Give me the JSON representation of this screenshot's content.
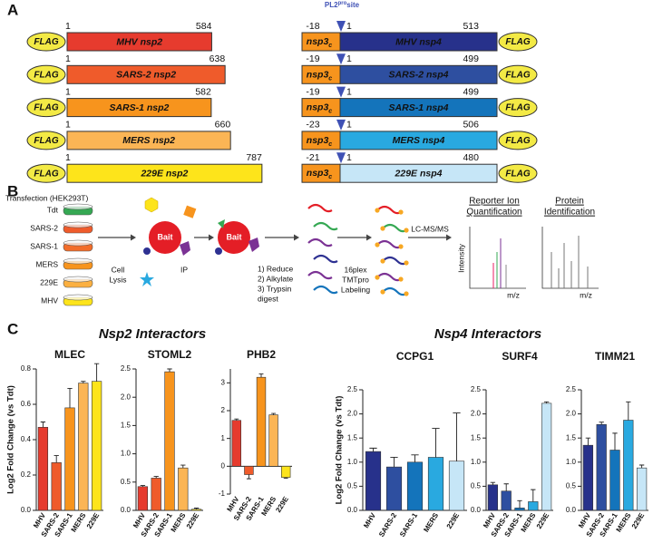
{
  "panel_a": {
    "label": "A",
    "flag": "FLAG",
    "nsp2": [
      {
        "name": "MHV nsp2",
        "start": 1,
        "end": 584,
        "color": "#e63b2e"
      },
      {
        "name": "SARS-2 nsp2",
        "start": 1,
        "end": 638,
        "color": "#ef5b2b"
      },
      {
        "name": "SARS-1 nsp2",
        "start": 1,
        "end": 582,
        "color": "#f7941d"
      },
      {
        "name": "MERS nsp2",
        "start": 1,
        "end": 660,
        "color": "#fbb555"
      },
      {
        "name": "229E nsp2",
        "start": 1,
        "end": 787,
        "color": "#fde41b"
      }
    ],
    "site_label": {
      "main": "PL2",
      "sup": "pro",
      "tail": "site"
    },
    "nsp3": {
      "main": "nsp3",
      "sub": "c"
    },
    "nsp4": [
      {
        "name": "MHV nsp4",
        "pre": -18,
        "start": 1,
        "end": 513,
        "color": "#27318b"
      },
      {
        "name": "SARS-2 nsp4",
        "pre": -19,
        "start": 1,
        "end": 499,
        "color": "#2e4fa0"
      },
      {
        "name": "SARS-1 nsp4",
        "pre": -19,
        "start": 1,
        "end": 499,
        "color": "#1474bb"
      },
      {
        "name": "MERS nsp4",
        "pre": -23,
        "start": 1,
        "end": 506,
        "color": "#29a9e0"
      },
      {
        "name": "229E nsp4",
        "pre": -21,
        "start": 1,
        "end": 480,
        "color": "#c6e6f7"
      }
    ]
  },
  "panel_b": {
    "label": "B",
    "transfection": "Transfection (HEK293T)",
    "samples": [
      {
        "name": "Tdt",
        "color": "#35a853"
      },
      {
        "name": "SARS-2",
        "color": "#ef5b2b"
      },
      {
        "name": "SARS-1",
        "color": "#f26d2a"
      },
      {
        "name": "MERS",
        "color": "#f7941d"
      },
      {
        "name": "229E",
        "color": "#fbb040"
      },
      {
        "name": "MHV",
        "color": "#fde41b"
      }
    ],
    "bait": "Bait",
    "cell_lysis": [
      "Cell",
      "Lysis"
    ],
    "ip": "IP",
    "digest": [
      "1) Reduce",
      "2) Alkylate",
      "3) Trypsin",
      "digest"
    ],
    "labeling": [
      "16plex",
      "TMTpro",
      "Labeling"
    ],
    "lcms": "LC-MS/MS",
    "reporter": [
      "Reporter Ion",
      "Quantification"
    ],
    "protein_id": [
      "Protein",
      "Identification"
    ],
    "intensity": "Intensity",
    "mz": "m/z"
  },
  "panel_c": {
    "label": "C",
    "nsp2_title": "Nsp2 Interactors",
    "nsp2_color": "#f15a29",
    "nsp4_title": "Nsp4 Interactors",
    "nsp4_color": "#2e3192"
  },
  "chart_data": [
    {
      "type": "bar",
      "title": "MLEC",
      "ylabel": "Log2 Fold Change (vs Tdt)",
      "categories": [
        "MHV",
        "SARS-2",
        "SARS-1",
        "MERS",
        "229E"
      ],
      "values": [
        0.47,
        0.27,
        0.58,
        0.72,
        0.73
      ],
      "errors": [
        0.03,
        0.04,
        0.11,
        0.01,
        0.1
      ],
      "colors": [
        "#e63b2e",
        "#ef5b2b",
        "#f7941d",
        "#fbb555",
        "#fde41b"
      ],
      "ylim": [
        0,
        0.8
      ],
      "yticks": [
        {
          "value": 0,
          "label": "0.0"
        },
        0.2,
        0.4,
        0.6,
        0.8
      ]
    },
    {
      "type": "bar",
      "title": "STOML2",
      "categories": [
        "MHV",
        "SARS-2",
        "SARS-1",
        "MERS",
        "229E"
      ],
      "values": [
        0.42,
        0.57,
        2.45,
        0.75,
        0.02
      ],
      "errors": [
        0.02,
        0.03,
        0.05,
        0.05,
        0.02
      ],
      "colors": [
        "#e63b2e",
        "#ef5b2b",
        "#f7941d",
        "#fbb555",
        "#fde41b"
      ],
      "ylim": [
        0,
        2.5
      ],
      "yticks": [
        {
          "value": 0,
          "label": "0.0"
        },
        0.5,
        {
          "value": 1,
          "label": "1.0"
        },
        1.5,
        {
          "value": 2,
          "label": "2.0"
        },
        2.5
      ]
    },
    {
      "type": "bar",
      "title": "PHB2",
      "categories": [
        "MHV",
        "SARS-2",
        "SARS-1",
        "MERS",
        "229E"
      ],
      "values": [
        1.65,
        -0.3,
        3.2,
        1.85,
        -0.4
      ],
      "errors": [
        0.05,
        0.15,
        0.12,
        0.05,
        0.03
      ],
      "colors": [
        "#e63b2e",
        "#ef5b2b",
        "#f7941d",
        "#fbb555",
        "#fde41b"
      ],
      "ylim": [
        -1,
        3.5
      ],
      "yticks": [
        -1,
        0,
        1,
        2,
        3
      ]
    },
    {
      "type": "bar",
      "title": "CCPG1",
      "ylabel": "Log2 Fold Change (vs Tdt)",
      "categories": [
        "MHV",
        "SARS-2",
        "SARS-1",
        "MERS",
        "229E"
      ],
      "values": [
        1.22,
        0.9,
        1.0,
        1.1,
        1.02
      ],
      "errors": [
        0.07,
        0.2,
        0.15,
        0.6,
        1.0
      ],
      "colors": [
        "#27318b",
        "#2e4fa0",
        "#1474bb",
        "#29a9e0",
        "#c6e6f7"
      ],
      "ylim": [
        0,
        2.5
      ],
      "yticks": [
        {
          "value": 0,
          "label": "0.0"
        },
        0.5,
        {
          "value": 1,
          "label": "1.0"
        },
        1.5,
        {
          "value": 2,
          "label": "2.0"
        },
        2.5
      ]
    },
    {
      "type": "bar",
      "title": "SURF4",
      "categories": [
        "MHV",
        "SARS-2",
        "SARS-1",
        "MERS",
        "229E"
      ],
      "values": [
        0.53,
        0.4,
        0.05,
        0.18,
        2.22
      ],
      "errors": [
        0.05,
        0.15,
        0.15,
        0.25,
        0.03
      ],
      "colors": [
        "#27318b",
        "#2e4fa0",
        "#1474bb",
        "#29a9e0",
        "#c6e6f7"
      ],
      "ylim": [
        0,
        2.5
      ],
      "yticks": [
        {
          "value": 0,
          "label": "0.0"
        },
        0.5,
        {
          "value": 1,
          "label": "1.0"
        },
        1.5,
        {
          "value": 2,
          "label": "2.0"
        },
        2.5
      ]
    },
    {
      "type": "bar",
      "title": "TIMM21",
      "categories": [
        "MHV",
        "SARS-2",
        "SARS-1",
        "MERS",
        "229E"
      ],
      "values": [
        1.35,
        1.78,
        1.25,
        1.87,
        0.88
      ],
      "errors": [
        0.15,
        0.05,
        0.35,
        0.38,
        0.06
      ],
      "colors": [
        "#27318b",
        "#2e4fa0",
        "#1474bb",
        "#29a9e0",
        "#c6e6f7"
      ],
      "ylim": [
        0,
        2.5
      ],
      "yticks": [
        {
          "value": 0,
          "label": "0.0"
        },
        0.5,
        {
          "value": 1,
          "label": "1.0"
        },
        1.5,
        {
          "value": 2,
          "label": "2.0"
        },
        2.5
      ]
    }
  ]
}
